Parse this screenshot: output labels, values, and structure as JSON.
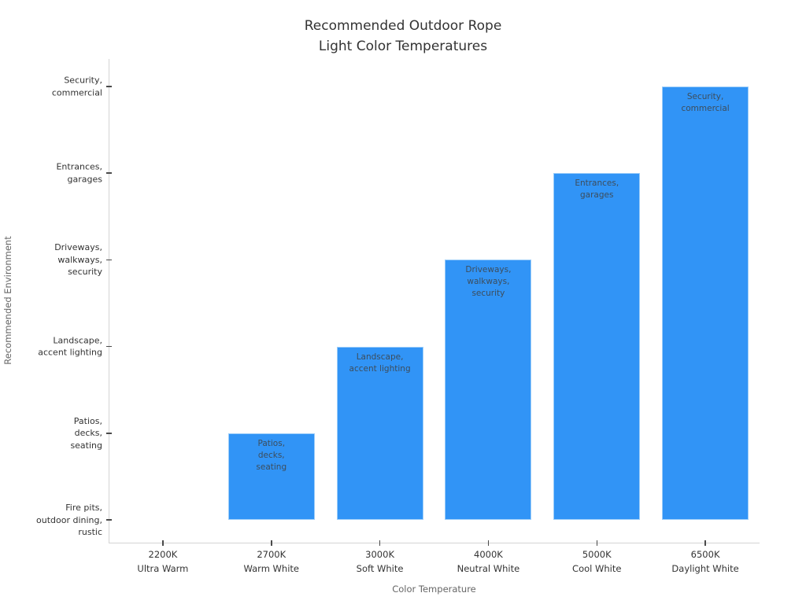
{
  "title": "Recommended Outdoor Rope\nLight Color Temperatures",
  "colors": {
    "bar": "#3194f6",
    "bar_edge": "#9ccdf9",
    "bar_label": "#3d4d5c",
    "axis_text": "#333333",
    "axis_title": "#666666",
    "spine": "#d4d4d4",
    "background": "#ffffff"
  },
  "chart_data": {
    "type": "bar",
    "orientation": "vertical",
    "title": "Recommended Outdoor Rope Light Color Temperatures",
    "xlabel": "Color Temperature",
    "ylabel": "Recommended Environment",
    "categories": [
      "2200K\nUltra Warm",
      "2700K\nWarm White",
      "3000K\nSoft White",
      "4000K\nNeutral White",
      "5000K\nCool White",
      "6500K\nDaylight White"
    ],
    "values": [
      0,
      1,
      2,
      3,
      4,
      5
    ],
    "y_tick_labels": [
      "Fire pits,\noutdoor dining,\nrustic",
      "Patios,\ndecks,\nseating",
      "Landscape,\naccent lighting",
      "Driveways,\nwalkways,\nsecurity",
      "Entrances,\ngarages",
      "Security,\ncommercial"
    ],
    "bar_labels": [
      "",
      "Patios,\ndecks,\nseating",
      "Landscape,\naccent lighting",
      "Driveways,\nwalkways,\nsecurity",
      "Entrances,\ngarages",
      "Security,\ncommercial"
    ],
    "ylim": [
      -0.26,
      5.32
    ],
    "grid": false,
    "legend": false
  }
}
